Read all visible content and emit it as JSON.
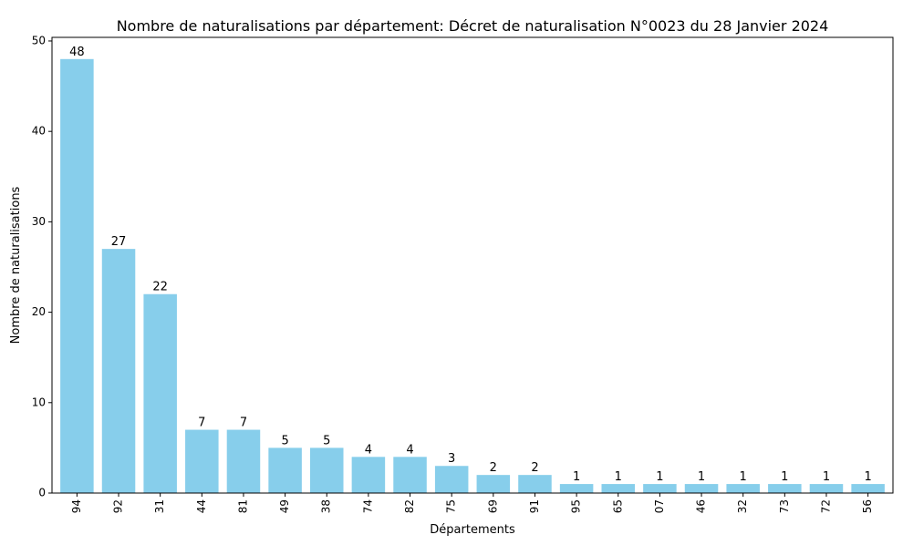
{
  "chart_data": {
    "type": "bar",
    "title": "Nombre de naturalisations par département: Décret de naturalisation N°0023 du 28 Janvier 2024",
    "xlabel": "Départements",
    "ylabel": "Nombre de naturalisations",
    "categories": [
      "94",
      "92",
      "31",
      "44",
      "81",
      "49",
      "38",
      "74",
      "82",
      "75",
      "69",
      "91",
      "95",
      "65",
      "07",
      "46",
      "32",
      "73",
      "72",
      "56"
    ],
    "values": [
      48,
      27,
      22,
      7,
      7,
      5,
      5,
      4,
      4,
      3,
      2,
      2,
      1,
      1,
      1,
      1,
      1,
      1,
      1,
      1
    ],
    "ylim": [
      0,
      50.4
    ],
    "yticks": [
      0,
      10,
      20,
      30,
      40,
      50
    ],
    "bar_color": "#87CEEB",
    "grid": false,
    "x_tick_rotation": "vertical",
    "legend": "none"
  }
}
